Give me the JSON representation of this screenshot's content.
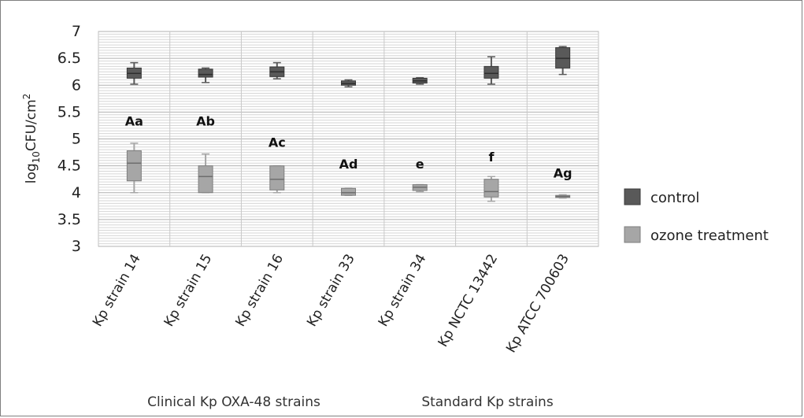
{
  "chart_data": {
    "type": "box",
    "ylabel": {
      "main": "log",
      "sub": "10",
      "rest": "CFU/cm",
      "sup": "2"
    },
    "ylim": [
      3,
      7
    ],
    "yticks": [
      "3",
      "3.5",
      "4",
      "4.5",
      "5",
      "5.5",
      "6",
      "6.5",
      "7"
    ],
    "grid": true,
    "legend_position": "right",
    "categories": [
      "Kp strain 14",
      "Kp strain 15",
      "Kp strain 16",
      "Kp strain 33",
      "Kp strain 34",
      "Kp NCTC 13442",
      "Kp ATCC 700603"
    ],
    "group_labels": [
      "Clinical Kp OXA-48  strains",
      "Standard Kp strains"
    ],
    "series": [
      {
        "name": "control",
        "color": "#595959",
        "boxes": [
          {
            "min": 6.02,
            "q1": 6.13,
            "median": 6.22,
            "q3": 6.32,
            "max": 6.42
          },
          {
            "min": 6.05,
            "q1": 6.15,
            "median": 6.2,
            "q3": 6.3,
            "max": 6.32
          },
          {
            "min": 6.12,
            "q1": 6.16,
            "median": 6.25,
            "q3": 6.34,
            "max": 6.42
          },
          {
            "min": 5.97,
            "q1": 6.0,
            "median": 6.03,
            "q3": 6.08,
            "max": 6.1
          },
          {
            "min": 6.02,
            "q1": 6.04,
            "median": 6.08,
            "q3": 6.13,
            "max": 6.14
          },
          {
            "min": 6.02,
            "q1": 6.13,
            "median": 6.22,
            "q3": 6.35,
            "max": 6.53
          },
          {
            "min": 6.2,
            "q1": 6.32,
            "median": 6.5,
            "q3": 6.7,
            "max": 6.72
          }
        ]
      },
      {
        "name": "ozone treatment",
        "color": "#a6a6a6",
        "boxes": [
          {
            "min": 4.0,
            "q1": 4.22,
            "median": 4.55,
            "q3": 4.78,
            "max": 4.92
          },
          {
            "min": 4.0,
            "q1": 4.0,
            "median": 4.3,
            "q3": 4.5,
            "max": 4.72
          },
          {
            "min": 4.0,
            "q1": 4.05,
            "median": 4.25,
            "q3": 4.5,
            "max": 4.5
          },
          {
            "min": 3.95,
            "q1": 3.95,
            "median": 4.0,
            "q3": 4.08,
            "max": 4.08
          },
          {
            "min": 4.02,
            "q1": 4.04,
            "median": 4.1,
            "q3": 4.15,
            "max": 4.15
          },
          {
            "min": 3.84,
            "q1": 3.92,
            "median": 4.02,
            "q3": 4.25,
            "max": 4.3
          },
          {
            "min": 3.9,
            "q1": 3.91,
            "median": 3.93,
            "q3": 3.95,
            "max": 3.96
          }
        ]
      }
    ],
    "annotations": [
      {
        "category": 0,
        "text": "Aa",
        "y": 5.25
      },
      {
        "category": 1,
        "text": "Ab",
        "y": 5.25
      },
      {
        "category": 2,
        "text": "Ac",
        "y": 4.85
      },
      {
        "category": 3,
        "text": "Ad",
        "y": 4.45
      },
      {
        "category": 4,
        "text": "e",
        "y": 4.45
      },
      {
        "category": 5,
        "text": "f",
        "y": 4.58
      },
      {
        "category": 6,
        "text": "Ag",
        "y": 4.28
      }
    ]
  }
}
